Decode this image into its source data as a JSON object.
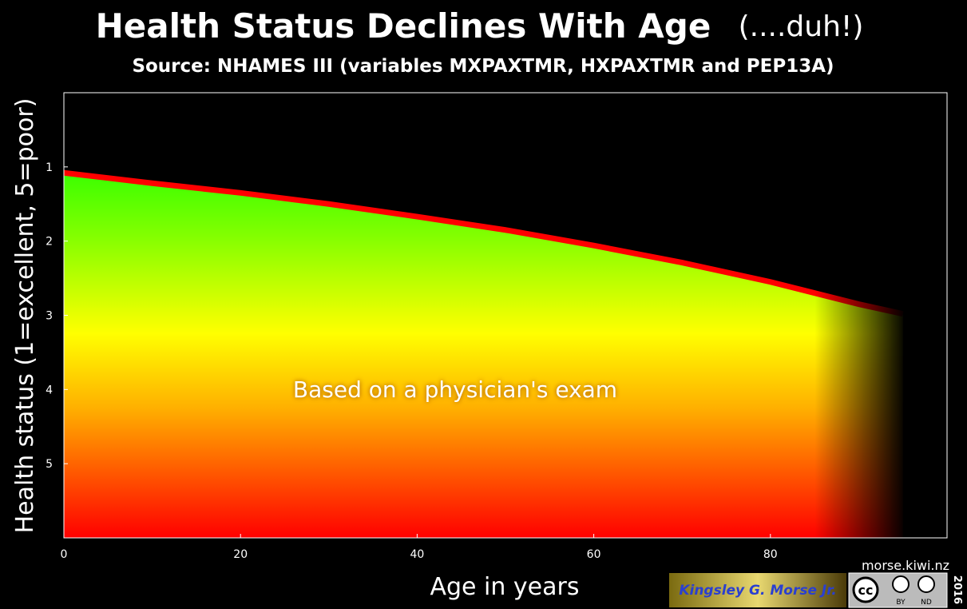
{
  "chart_data": {
    "type": "area",
    "title": "Health Status Declines With Age",
    "title_aside": "(....duh!)",
    "subtitle": "Source: NHAMES III (variables MXPAXTMR, HXPAXTMR and PEP13A)",
    "x_label": "Age in years",
    "y_label": "Health status (1=excellent, 5=poor)",
    "annotation": "Based on a physician's exam",
    "x": [
      0,
      10,
      20,
      30,
      40,
      50,
      60,
      70,
      80,
      90,
      95
    ],
    "series": [
      {
        "color": "#ff0000",
        "values": [
          1.08,
          1.22,
          1.35,
          1.5,
          1.67,
          1.85,
          2.06,
          2.29,
          2.55,
          2.85,
          2.98
        ]
      }
    ],
    "xlim": [
      0,
      100
    ],
    "ylim": [
      6,
      0
    ],
    "xticks": [
      0,
      20,
      40,
      60,
      80
    ],
    "yticks": [
      1,
      2,
      3,
      4,
      5
    ]
  },
  "credits": {
    "site": "morse.kiwi.nz",
    "author": "Kingsley G. Morse Jr.",
    "year": "2016",
    "license": "cc",
    "license_terms": [
      "BY",
      "ND"
    ]
  }
}
